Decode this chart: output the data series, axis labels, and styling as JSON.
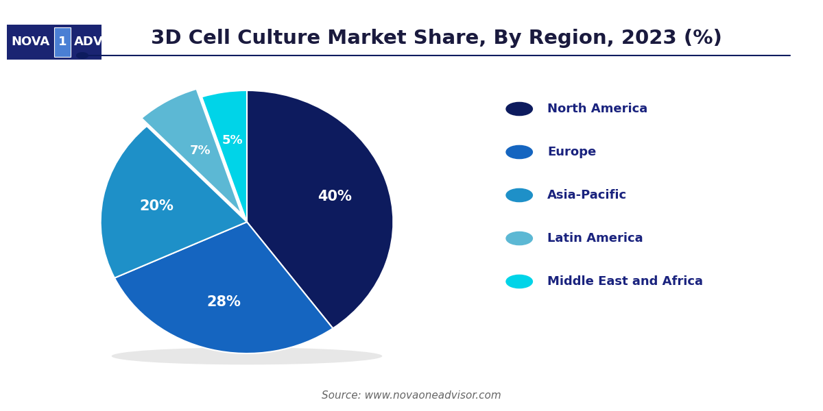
{
  "title": "3D Cell Culture Market Share, By Region, 2023 (%)",
  "title_fontsize": 21,
  "title_color": "#1a1a3e",
  "source_text": "Source: www.novaoneadvisor.com",
  "labels": [
    "North America",
    "Europe",
    "Asia-Pacific",
    "Latin America",
    "Middle East and Africa"
  ],
  "values": [
    40,
    28,
    20,
    7,
    5
  ],
  "colors": [
    "#0d1b5e",
    "#1565c0",
    "#1e90c8",
    "#5cb8d4",
    "#00d4e8"
  ],
  "pct_labels": [
    "40%",
    "28%",
    "20%",
    "7%",
    "5%"
  ],
  "legend_text_color": "#1a237e",
  "background_color": "#ffffff",
  "explode": [
    0,
    0,
    0,
    0.07,
    0
  ],
  "startangle": 90,
  "logo_bg_color": "#1a2472",
  "logo_accent_color": "#4a7fd4",
  "line_color": "#0d1b5e",
  "source_color": "#666666"
}
